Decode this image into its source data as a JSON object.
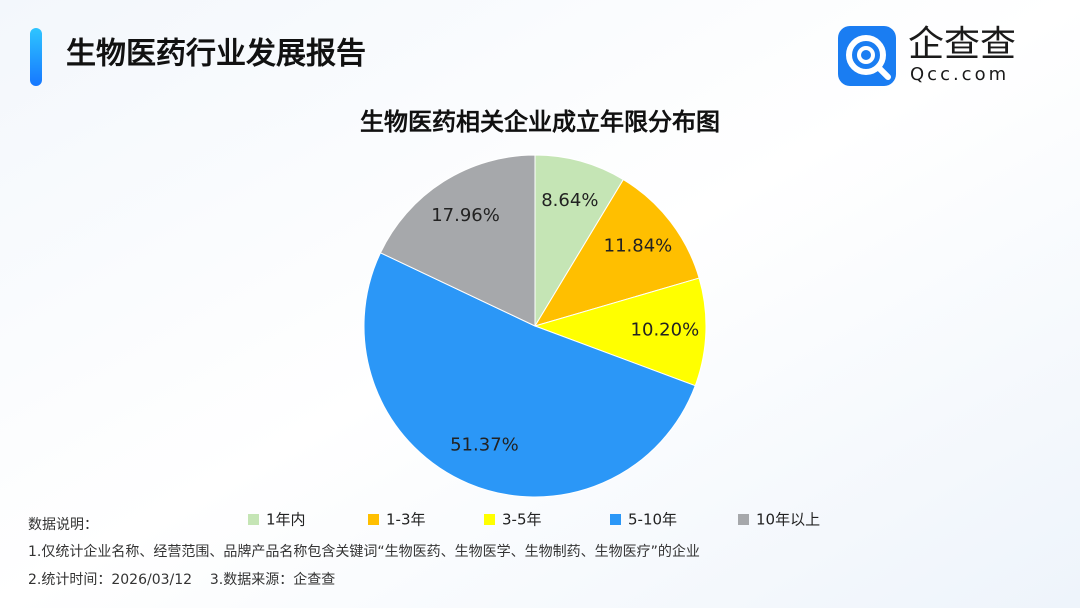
{
  "header": {
    "title": "生物医药行业发展报告"
  },
  "logo": {
    "name": "企查查",
    "domain": "Qcc.com"
  },
  "chart_data": {
    "type": "pie",
    "title": "生物医药相关企业成立年限分布图",
    "categories": [
      "1年内",
      "1-3年",
      "3-5年",
      "5-10年",
      "10年以上"
    ],
    "values": [
      8.64,
      11.84,
      10.2,
      51.37,
      17.96
    ],
    "value_labels": [
      "8.64%",
      "11.84%",
      "10.20%",
      "51.37%",
      "17.96%"
    ],
    "colors": [
      "#c5e5b5",
      "#ffbf00",
      "#ffff00",
      "#2b97f7",
      "#a6a8ab"
    ]
  },
  "notes": [
    "数据说明：",
    "1.仅统计企业名称、经营范围、品牌产品名称包含关键词“生物医药、生物医学、生物制药、生物医疗”的企业",
    "2.统计时间：2026/03/12    3.数据来源：企查查"
  ]
}
